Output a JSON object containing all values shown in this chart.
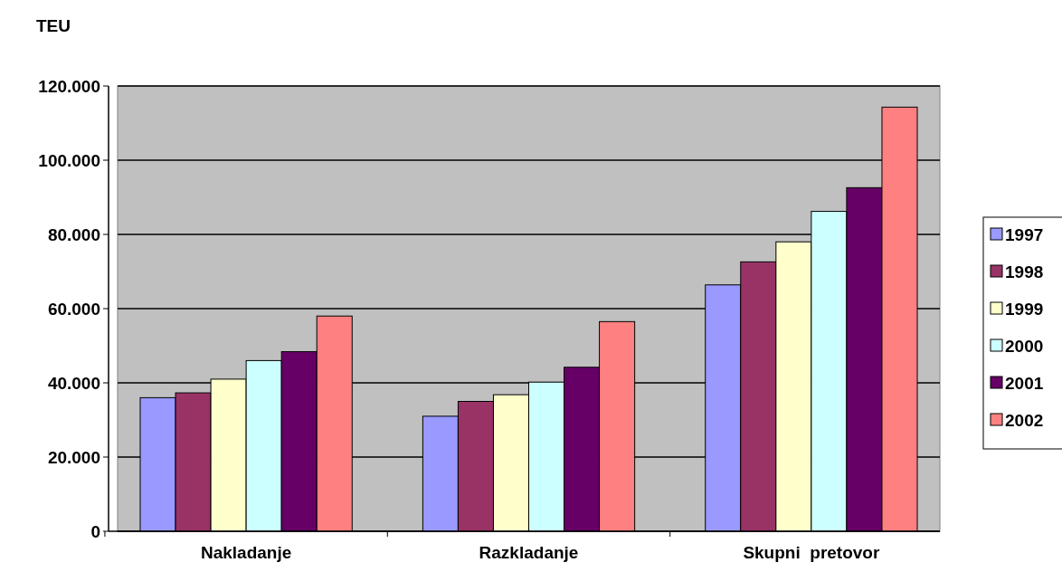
{
  "chart_data": {
    "type": "bar",
    "ylabel": "TEU",
    "categories": [
      "Nakladanje",
      "Razkladanje",
      "Skupni  pretovor"
    ],
    "series": [
      {
        "name": "1997",
        "color": "#9999ff",
        "values": [
          36000,
          31000,
          66400
        ]
      },
      {
        "name": "1998",
        "color": "#993366",
        "values": [
          37300,
          35000,
          72600
        ]
      },
      {
        "name": "1999",
        "color": "#ffffcc",
        "values": [
          41000,
          36800,
          78000
        ]
      },
      {
        "name": "2000",
        "color": "#ccffff",
        "values": [
          46000,
          40200,
          86200
        ]
      },
      {
        "name": "2001",
        "color": "#660066",
        "values": [
          48400,
          44200,
          92600
        ]
      },
      {
        "name": "2002",
        "color": "#ff8080",
        "values": [
          58000,
          56500,
          114300
        ]
      }
    ],
    "ylim": [
      0,
      120000
    ],
    "yticks": [
      {
        "value": 0,
        "label": "0"
      },
      {
        "value": 20000,
        "label": "20.000"
      },
      {
        "value": 40000,
        "label": "40.000"
      },
      {
        "value": 60000,
        "label": "60.000"
      },
      {
        "value": 80000,
        "label": "80.000"
      },
      {
        "value": 100000,
        "label": "100.000"
      },
      {
        "value": 120000,
        "label": "120.000"
      }
    ],
    "grid": "y",
    "legend": "right"
  }
}
